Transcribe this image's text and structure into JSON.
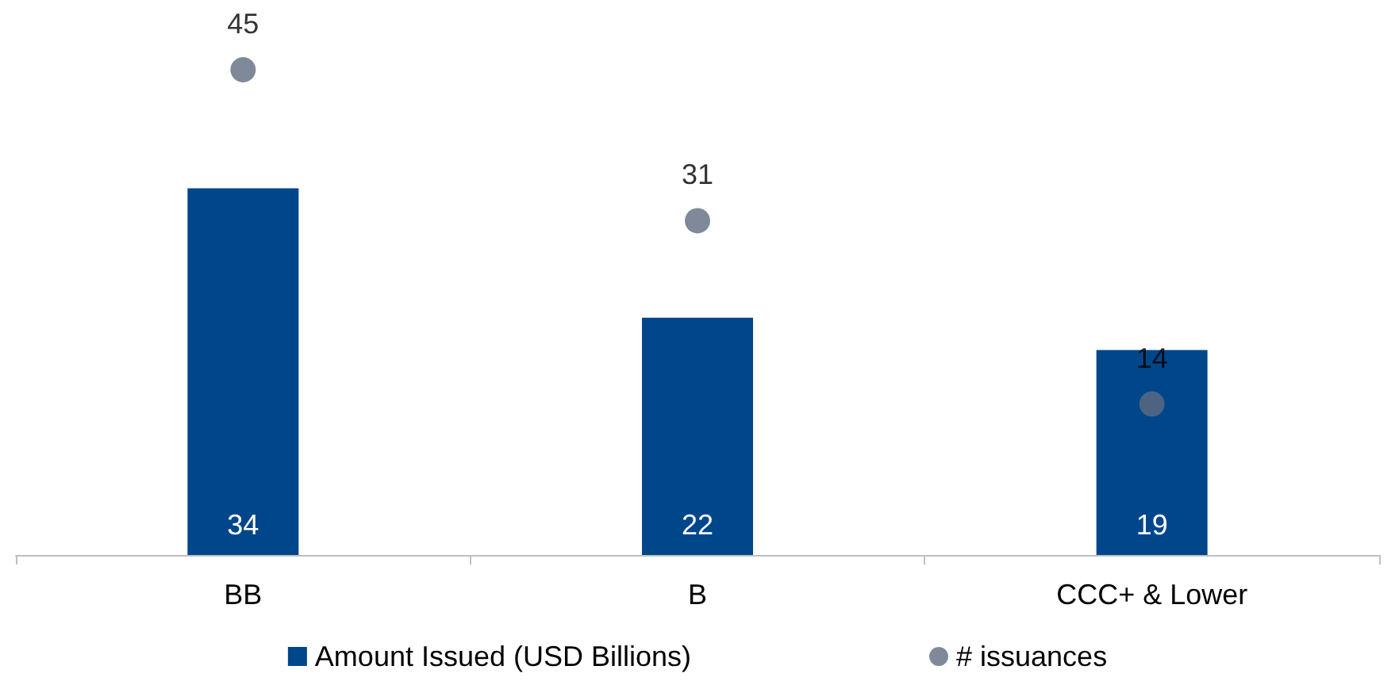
{
  "chart_data": {
    "type": "bar",
    "categories": [
      "BB",
      "B",
      "CCC+ & Lower"
    ],
    "series": [
      {
        "name": "Amount Issued (USD Billions)",
        "color": "#00468b",
        "values": [
          34,
          22,
          19
        ]
      },
      {
        "name": "# issuances",
        "type": "scatter",
        "color": "#5f6b80",
        "values": [
          45,
          31,
          14
        ]
      }
    ],
    "data_labels": true,
    "legend": "bottom",
    "marker": "circle",
    "tick_labels": "x"
  }
}
